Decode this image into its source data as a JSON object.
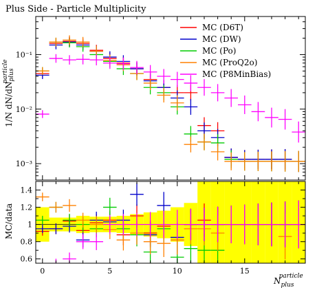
{
  "chart_data": {
    "type": "scatter",
    "title": "Plus Side - Particle Multiplicity",
    "xlabel": "N",
    "xlabel_sub": "plus",
    "xlabel_sup": "particle",
    "ylabel": "1/N dN/dN",
    "ylabel_sub": "plus",
    "ylabel_sup": "particle",
    "ratio_ylabel": "MC/data",
    "xlim": [
      -0.5,
      19.5
    ],
    "ylim": [
      0.0005,
      0.5
    ],
    "yscale": "log",
    "ratio_ylim": [
      0.55,
      1.5
    ],
    "x_ticks": [
      0,
      5,
      10,
      15
    ],
    "x_tick_labels": [
      "0",
      "5",
      "10",
      "15"
    ],
    "y_ticks": [
      0.001,
      0.01,
      0.1
    ],
    "y_tick_labels": [
      "10⁻³",
      "10⁻²",
      "10⁻¹"
    ],
    "ratio_ticks": [
      0.6,
      0.8,
      1,
      1.2,
      1.4
    ],
    "ratio_tick_labels": [
      "0.6",
      "0.8",
      "1",
      "1.2",
      "1.4"
    ],
    "legend_position": "top-right",
    "series": [
      {
        "name": "MC (D6T)",
        "color": "#ff0000",
        "x": [
          0,
          1,
          2,
          3,
          4,
          5,
          6,
          7,
          8,
          9,
          10,
          11,
          12,
          13,
          14,
          15,
          16,
          17,
          18,
          19
        ],
        "y": [
          0.045,
          0.16,
          0.175,
          0.16,
          0.12,
          0.085,
          0.07,
          0.055,
          0.035,
          0.025,
          0.02,
          0.02,
          0.005,
          0.004,
          0.0013,
          0.0012,
          0.0012,
          0.0012,
          0.0012,
          0.0011
        ],
        "ratio": [
          0.92,
          0.95,
          1.04,
          0.93,
          1.02,
          1.05,
          0.88,
          1.1,
          0.9,
          0.98,
          0.82,
          1.0,
          1.05,
          1.0,
          1.0,
          1.0,
          1.0,
          1.0,
          1.0,
          1.0
        ]
      },
      {
        "name": "MC (DW)",
        "color": "#0000cc",
        "x": [
          0,
          1,
          2,
          3,
          4,
          5,
          6,
          7,
          8,
          9,
          10,
          11,
          12,
          13,
          14,
          15,
          16,
          17,
          18,
          19
        ],
        "y": [
          0.042,
          0.15,
          0.17,
          0.15,
          0.115,
          0.09,
          0.075,
          0.055,
          0.033,
          0.025,
          0.016,
          0.011,
          0.004,
          0.003,
          0.0013,
          0.0012,
          0.0012,
          0.0012,
          0.0012,
          0.0011
        ],
        "ratio": [
          0.95,
          0.95,
          0.98,
          0.82,
          1.05,
          1.03,
          1.05,
          1.35,
          0.88,
          1.22,
          0.85,
          1.0,
          1.0,
          1.0,
          1.0,
          1.0,
          1.0,
          1.0,
          1.0,
          1.0
        ]
      },
      {
        "name": "MC (Po)",
        "color": "#00cc00",
        "x": [
          0,
          1,
          2,
          3,
          4,
          5,
          6,
          7,
          8,
          9,
          10,
          11,
          12,
          13,
          14,
          15,
          16,
          17,
          18,
          19
        ],
        "y": [
          0.05,
          0.17,
          0.165,
          0.14,
          0.1,
          0.075,
          0.055,
          0.045,
          0.025,
          0.02,
          0.011,
          0.0035,
          0.0025,
          0.0024,
          0.0012,
          0.0011,
          0.0011,
          0.0011,
          0.0011,
          0.0011
        ],
        "ratio": [
          1.05,
          1.2,
          1.05,
          1.0,
          0.95,
          1.2,
          0.95,
          0.88,
          0.68,
          0.95,
          0.62,
          0.72,
          0.7,
          0.7,
          1.0,
          1.0,
          1.0,
          1.0,
          1.0,
          1.0
        ]
      },
      {
        "name": "MC (ProQ2o)",
        "color": "#ff8000",
        "x": [
          0,
          1,
          2,
          3,
          4,
          5,
          6,
          7,
          8,
          9,
          10,
          11,
          12,
          13,
          14,
          15,
          16,
          17,
          18,
          19
        ],
        "y": [
          0.05,
          0.17,
          0.185,
          0.17,
          0.115,
          0.078,
          0.065,
          0.045,
          0.03,
          0.018,
          0.013,
          0.00225,
          0.0025,
          0.00165,
          0.0011,
          0.0011,
          0.0011,
          0.0011,
          0.0011,
          0.0011
        ],
        "ratio": [
          1.32,
          1.2,
          1.22,
          1.05,
          1.0,
          0.94,
          0.82,
          0.9,
          0.8,
          0.78,
          0.82,
          0.95,
          0.95,
          0.9,
          1.0,
          1.0,
          1.0,
          1.0,
          0.86,
          1.0
        ]
      },
      {
        "name": "MC (P8MinBias)",
        "color": "#ff00ff",
        "x": [
          0,
          1,
          2,
          3,
          4,
          5,
          6,
          7,
          8,
          9,
          10,
          11,
          12,
          13,
          14,
          15,
          16,
          17,
          18,
          19
        ],
        "y": [
          0.0081,
          0.085,
          0.08,
          0.082,
          0.08,
          0.07,
          0.068,
          0.058,
          0.048,
          0.04,
          0.035,
          0.03,
          0.025,
          0.02,
          0.016,
          0.012,
          0.009,
          0.007,
          0.0065,
          0.0038
        ],
        "ratio": [
          0.5,
          0.54,
          0.6,
          0.8,
          0.8,
          1.0,
          1.0,
          1.0,
          1.0,
          1.0,
          1.0,
          1.0,
          1.0,
          1.0,
          1.0,
          1.0,
          1.0,
          1.0,
          1.0,
          1.0
        ]
      }
    ],
    "data_band_halfwidth": [
      0.2,
      0.08,
      0.08,
      0.1,
      0.09,
      0.09,
      0.1,
      0.12,
      0.14,
      0.16,
      0.2,
      0.25,
      0.5,
      0.6,
      0.8,
      0.8,
      0.8,
      0.8,
      0.8,
      0.8
    ]
  }
}
